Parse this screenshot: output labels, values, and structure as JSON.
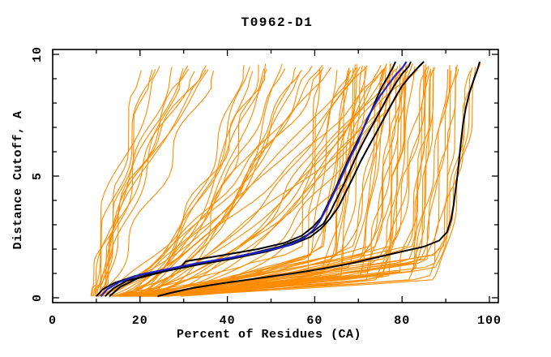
{
  "chart_data": {
    "type": "line",
    "title": "T0962-D1",
    "xlabel": "Percent of Residues (CA)",
    "ylabel": "Distance Cutoff, A",
    "xlim": [
      0,
      100
    ],
    "ylim": [
      0,
      10
    ],
    "x_major_ticks": [
      0,
      20,
      40,
      60,
      80,
      100
    ],
    "x_minor_tick_step": 10,
    "y_major_ticks": [
      0,
      5,
      10
    ],
    "y_minor_tick_step": 1,
    "grid": false,
    "legend": "none",
    "palette": {
      "background": "#ffffff",
      "frame": "#000000",
      "ensemble": "#ff8c00",
      "highlight": "#000000",
      "model": "#2222cc"
    },
    "series": [
      {
        "name": "highlight-black-1",
        "color": "#000000",
        "width": 2,
        "points": [
          [
            10,
            0.06
          ],
          [
            11.5,
            0.35
          ],
          [
            14,
            0.6
          ],
          [
            19,
            0.9
          ],
          [
            26,
            1.15
          ],
          [
            29.5,
            1.3
          ],
          [
            30.5,
            1.5
          ],
          [
            39,
            1.75
          ],
          [
            47,
            2.0
          ],
          [
            53,
            2.25
          ],
          [
            57,
            2.55
          ],
          [
            59.5,
            2.9
          ],
          [
            61.5,
            3.3
          ],
          [
            63,
            3.85
          ],
          [
            64.5,
            4.4
          ],
          [
            66,
            5.0
          ],
          [
            67.5,
            5.6
          ],
          [
            69,
            6.15
          ],
          [
            70.5,
            6.7
          ],
          [
            71.8,
            7.2
          ],
          [
            73,
            7.7
          ],
          [
            74.2,
            8.2
          ],
          [
            75.5,
            8.7
          ],
          [
            76.8,
            9.1
          ],
          [
            78,
            9.5
          ],
          [
            78.5,
            9.7
          ]
        ]
      },
      {
        "name": "highlight-black-2",
        "color": "#000000",
        "width": 2,
        "points": [
          [
            12,
            0.06
          ],
          [
            14,
            0.4
          ],
          [
            17,
            0.7
          ],
          [
            23,
            1.0
          ],
          [
            30,
            1.25
          ],
          [
            37,
            1.5
          ],
          [
            45,
            1.8
          ],
          [
            52,
            2.1
          ],
          [
            56.5,
            2.4
          ],
          [
            59.5,
            2.7
          ],
          [
            62,
            3.05
          ],
          [
            63.5,
            3.5
          ],
          [
            65,
            4.05
          ],
          [
            66.5,
            4.6
          ],
          [
            68,
            5.2
          ],
          [
            69.5,
            5.8
          ],
          [
            71,
            6.35
          ],
          [
            72.5,
            6.85
          ],
          [
            74,
            7.35
          ],
          [
            75.5,
            7.85
          ],
          [
            77,
            8.35
          ],
          [
            78.5,
            8.8
          ],
          [
            80,
            9.2
          ],
          [
            81.5,
            9.5
          ],
          [
            82,
            9.7
          ]
        ]
      },
      {
        "name": "highlight-black-3",
        "color": "#000000",
        "width": 2,
        "points": [
          [
            13,
            0.06
          ],
          [
            15.5,
            0.45
          ],
          [
            19.5,
            0.8
          ],
          [
            26,
            1.1
          ],
          [
            33,
            1.35
          ],
          [
            41,
            1.6
          ],
          [
            49,
            1.9
          ],
          [
            55,
            2.2
          ],
          [
            59,
            2.5
          ],
          [
            61.5,
            2.85
          ],
          [
            63.5,
            3.25
          ],
          [
            65.5,
            3.75
          ],
          [
            67,
            4.3
          ],
          [
            68.8,
            4.95
          ],
          [
            70.5,
            5.6
          ],
          [
            72.3,
            6.2
          ],
          [
            74,
            6.75
          ],
          [
            75.5,
            7.25
          ],
          [
            77,
            7.75
          ],
          [
            78.5,
            8.25
          ],
          [
            80,
            8.7
          ],
          [
            81.8,
            9.1
          ],
          [
            83.6,
            9.45
          ],
          [
            85,
            9.7
          ]
        ]
      },
      {
        "name": "highlight-black-4",
        "color": "#000000",
        "width": 2,
        "points": [
          [
            24,
            0.06
          ],
          [
            27,
            0.2
          ],
          [
            32,
            0.4
          ],
          [
            39,
            0.6
          ],
          [
            47,
            0.8
          ],
          [
            55,
            1.0
          ],
          [
            62,
            1.2
          ],
          [
            68,
            1.4
          ],
          [
            74,
            1.65
          ],
          [
            80,
            1.9
          ],
          [
            85,
            2.1
          ],
          [
            88.5,
            2.35
          ],
          [
            90.3,
            2.7
          ],
          [
            91.2,
            3.2
          ],
          [
            91.8,
            3.8
          ],
          [
            92.3,
            4.5
          ],
          [
            92.8,
            5.2
          ],
          [
            93.2,
            5.9
          ],
          [
            93.6,
            6.6
          ],
          [
            94,
            7.2
          ],
          [
            94.6,
            7.8
          ],
          [
            95.4,
            8.4
          ],
          [
            96.3,
            8.9
          ],
          [
            97.2,
            9.35
          ],
          [
            97.8,
            9.7
          ]
        ]
      },
      {
        "name": "model-blue",
        "color": "#2222cc",
        "width": 2.2,
        "points": [
          [
            11,
            0.06
          ],
          [
            12.5,
            0.35
          ],
          [
            15,
            0.62
          ],
          [
            20,
            0.95
          ],
          [
            27,
            1.2
          ],
          [
            34,
            1.45
          ],
          [
            41,
            1.65
          ],
          [
            48,
            1.9
          ],
          [
            54,
            2.15
          ],
          [
            57.5,
            2.45
          ],
          [
            59.5,
            2.75
          ],
          [
            61,
            3.1
          ],
          [
            62.5,
            3.6
          ],
          [
            64,
            4.15
          ],
          [
            65.5,
            4.7
          ],
          [
            67,
            5.3
          ],
          [
            68.5,
            5.9
          ],
          [
            70,
            6.4
          ],
          [
            71,
            6.9
          ],
          [
            72,
            7.35
          ],
          [
            73.5,
            7.85
          ],
          [
            75,
            8.3
          ],
          [
            76.8,
            8.75
          ],
          [
            78.5,
            9.15
          ],
          [
            80.3,
            9.5
          ],
          [
            81,
            9.7
          ]
        ]
      }
    ],
    "ensemble": {
      "name": "all-predictions",
      "color": "#ff8c00",
      "width": 1.1,
      "count": 90,
      "seed": 20181,
      "y_start": 0.06,
      "y_end_range": [
        9.3,
        9.62
      ],
      "groups": [
        {
          "name": "steep-left",
          "count": 13,
          "x_start_range": [
            5.5,
            13
          ],
          "x_top_range": [
            18,
            42
          ],
          "shape_exp_range": [
            0.9,
            1.7
          ]
        },
        {
          "name": "mid-fan",
          "count": 30,
          "x_start_range": [
            6,
            16
          ],
          "x_top_range": [
            42,
            86
          ],
          "shape_exp_range": [
            0.35,
            0.75
          ]
        },
        {
          "name": "bottom-hug",
          "count": 47,
          "x_start_range": [
            9,
            24
          ],
          "knee_x_range": [
            55,
            88
          ],
          "knee_y_range": [
            0.7,
            2.1
          ],
          "top_delta_range": [
            3,
            11
          ],
          "rise_exp_range": [
            0.5,
            0.9
          ]
        }
      ]
    }
  }
}
